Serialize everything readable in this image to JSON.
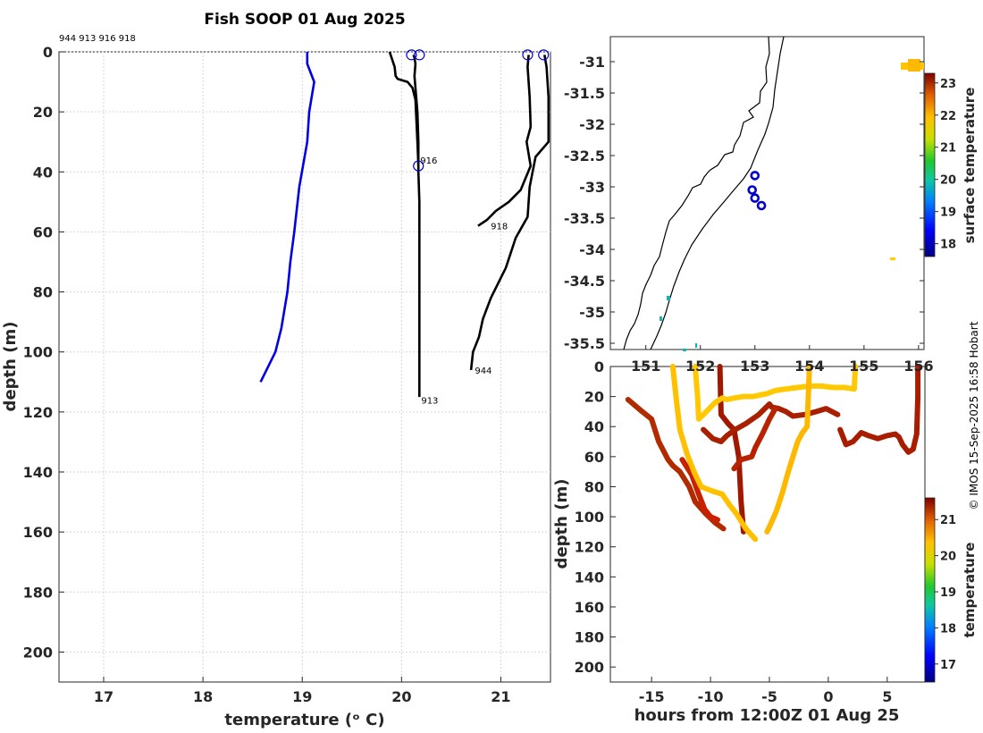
{
  "title": "Fish SOOP 01 Aug 2025",
  "header_ids": "944 913 916 918",
  "credit": "© IMOS 15-Sep-2025 16:58 Hobart",
  "colors": {
    "profile_main": "#000000",
    "profile_highlight": "#0000e6",
    "marker": "#0000d0",
    "grid": "#d6d6d6"
  },
  "chart_data": [
    {
      "type": "line",
      "name": "temperature_profiles",
      "xlabel": "temperature (ᵒ C)",
      "ylabel": "depth (m)",
      "xlim": [
        16.55,
        21.5
      ],
      "ylim": [
        210,
        0
      ],
      "xticks": [
        17,
        18,
        19,
        20,
        21
      ],
      "xtick_labels": [
        "17",
        "18",
        "19",
        "20",
        "21"
      ],
      "yticks": [
        0,
        20,
        40,
        60,
        80,
        100,
        120,
        140,
        160,
        180,
        200
      ],
      "ytick_labels": [
        "0",
        "20",
        "40",
        "60",
        "80",
        "100",
        "120",
        "140",
        "160",
        "180",
        "200"
      ],
      "grid": true,
      "series": [
        {
          "name": "highlight",
          "color": "blue",
          "points": [
            [
              19.05,
              0
            ],
            [
              19.05,
              4
            ],
            [
              19.12,
              10
            ],
            [
              19.07,
              20
            ],
            [
              19.05,
              30
            ],
            [
              18.97,
              45
            ],
            [
              18.92,
              60
            ],
            [
              18.88,
              70
            ],
            [
              18.85,
              80
            ],
            [
              18.79,
              92
            ],
            [
              18.73,
              100
            ],
            [
              18.58,
              110
            ]
          ]
        },
        {
          "name": "913",
          "points": [
            [
              20.12,
              1
            ],
            [
              20.13,
              2
            ],
            [
              20.14,
              4
            ],
            [
              20.13,
              8
            ],
            [
              20.14,
              12
            ],
            [
              20.15,
              16
            ],
            [
              20.16,
              20
            ],
            [
              20.17,
              30
            ],
            [
              20.17,
              40
            ],
            [
              20.18,
              50
            ],
            [
              20.18,
              60
            ],
            [
              20.18,
              70
            ],
            [
              20.18,
              80
            ],
            [
              20.18,
              90
            ],
            [
              20.18,
              100
            ],
            [
              20.18,
              110
            ],
            [
              20.18,
              115
            ]
          ]
        },
        {
          "name": "916",
          "points": [
            [
              19.88,
              0
            ],
            [
              19.93,
              5
            ],
            [
              19.94,
              8
            ],
            [
              19.96,
              9
            ],
            [
              20.06,
              10
            ],
            [
              20.11,
              12
            ],
            [
              20.14,
              16
            ],
            [
              20.16,
              30
            ],
            [
              20.17,
              38
            ]
          ]
        },
        {
          "name": "918",
          "points": [
            [
              21.28,
              1
            ],
            [
              21.27,
              5
            ],
            [
              21.29,
              15
            ],
            [
              21.3,
              25
            ],
            [
              21.26,
              30
            ],
            [
              21.3,
              38
            ],
            [
              21.2,
              46
            ],
            [
              21.08,
              50
            ],
            [
              20.95,
              53
            ],
            [
              20.86,
              56
            ],
            [
              20.77,
              58
            ]
          ]
        },
        {
          "name": "944",
          "points": [
            [
              21.44,
              1
            ],
            [
              21.46,
              5
            ],
            [
              21.48,
              15
            ],
            [
              21.48,
              30
            ],
            [
              21.35,
              35
            ],
            [
              21.29,
              45
            ],
            [
              21.27,
              55
            ],
            [
              21.15,
              62
            ],
            [
              21.05,
              72
            ],
            [
              20.9,
              82
            ],
            [
              20.82,
              89
            ],
            [
              20.78,
              95
            ],
            [
              20.72,
              100
            ],
            [
              20.7,
              106
            ]
          ]
        }
      ],
      "markers": [
        [
          20.1,
          1
        ],
        [
          20.18,
          1
        ],
        [
          21.27,
          1
        ],
        [
          21.43,
          1
        ],
        [
          20.17,
          38
        ]
      ],
      "annotations": [
        {
          "text": "916",
          "x": 20.17,
          "y": 36
        },
        {
          "text": "918",
          "x": 20.88,
          "y": 58
        },
        {
          "text": "944",
          "x": 20.72,
          "y": 106
        },
        {
          "text": "913",
          "x": 20.18,
          "y": 116
        }
      ]
    },
    {
      "type": "scatter",
      "name": "station_map",
      "xlim": [
        150.35,
        156.1
      ],
      "ylim": [
        -35.6,
        -30.6
      ],
      "xticks": [
        151,
        152,
        153,
        154,
        155,
        156
      ],
      "xtick_labels": [
        "151",
        "152",
        "153",
        "154",
        "155",
        "156"
      ],
      "yticks": [
        -31,
        -31.5,
        -32,
        -32.5,
        -33,
        -33.5,
        -34,
        -34.5,
        -35,
        -35.5
      ],
      "ytick_labels": [
        "-31",
        "-31.5",
        "-32",
        "-32.5",
        "-33",
        "-33.5",
        "-34",
        "-34.5",
        "-35",
        "-35.5"
      ],
      "stations": [
        [
          153.0,
          -32.82
        ],
        [
          152.95,
          -33.05
        ],
        [
          153.0,
          -33.18
        ],
        [
          153.12,
          -33.3
        ]
      ],
      "colorbar": {
        "label": "surface temperature",
        "min": 17.6,
        "max": 23.3,
        "ticks": [
          18,
          19,
          20,
          21,
          22,
          23
        ],
        "tick_labels": [
          "18",
          "19",
          "20",
          "21",
          "22",
          "23"
        ]
      }
    },
    {
      "type": "scatter",
      "name": "depth_time",
      "xlabel": "hours from 12:00Z 01 Aug 25",
      "ylabel": "depth (m)",
      "xlim": [
        -18.5,
        8.2
      ],
      "ylim": [
        210,
        0
      ],
      "xticks": [
        -15,
        -10,
        -5,
        0,
        5
      ],
      "xtick_labels": [
        "-15",
        "-10",
        "-5",
        "0",
        "5"
      ],
      "yticks": [
        0,
        20,
        40,
        60,
        80,
        100,
        120,
        140,
        160,
        180,
        200
      ],
      "ytick_labels": [
        "0",
        "20",
        "40",
        "60",
        "80",
        "100",
        "120",
        "140",
        "160",
        "180",
        "200"
      ],
      "colorbar": {
        "label": "temperature",
        "min": 16.5,
        "max": 21.6,
        "ticks": [
          17,
          18,
          19,
          20,
          21
        ],
        "tick_labels": [
          "17",
          "18",
          "19",
          "20",
          "21"
        ]
      },
      "series": [
        {
          "name": "trace_a",
          "color": "#b22a00",
          "points": [
            [
              -17.0,
              22
            ],
            [
              -15.8,
              30
            ],
            [
              -15,
              35
            ],
            [
              -14.4,
              50
            ],
            [
              -13.6,
              62
            ],
            [
              -13.2,
              66
            ],
            [
              -12.6,
              70
            ],
            [
              -11.8,
              80
            ],
            [
              -11.3,
              90
            ],
            [
              -10.4,
              98
            ],
            [
              -9.6,
              104
            ],
            [
              -8.9,
              108
            ]
          ]
        },
        {
          "name": "trace_b",
          "color": "#c82000",
          "points": [
            [
              -12.4,
              62
            ],
            [
              -11.6,
              72
            ],
            [
              -11.0,
              85
            ],
            [
              -10.5,
              95
            ],
            [
              -10,
              100
            ],
            [
              -9.4,
              102
            ]
          ]
        },
        {
          "name": "trace_c",
          "color": "#a01800",
          "points": [
            [
              -9.2,
              0
            ],
            [
              -9.1,
              32
            ],
            [
              -8.5,
              38
            ],
            [
              -8.0,
              42
            ],
            [
              -7.6,
              60
            ],
            [
              -7.4,
              90
            ],
            [
              -7.2,
              110
            ]
          ]
        },
        {
          "name": "trace_d",
          "color": "#a82000",
          "points": [
            [
              -10.6,
              42
            ],
            [
              -9.8,
              48
            ],
            [
              -9.1,
              50
            ],
            [
              -8.6,
              46
            ],
            [
              -7.9,
              42
            ],
            [
              -7.0,
              38
            ],
            [
              -5.9,
              32
            ],
            [
              -5.0,
              25
            ],
            [
              -4.8,
              27
            ],
            [
              -4.2,
              28
            ],
            [
              -3.6,
              30
            ],
            [
              -3.0,
              33
            ],
            [
              -2.0,
              32
            ],
            [
              -1.0,
              30
            ],
            [
              -0.2,
              28
            ],
            [
              0.8,
              32
            ]
          ]
        },
        {
          "name": "trace_e",
          "color": "#b82200",
          "points": [
            [
              -8.0,
              68
            ],
            [
              -7.4,
              62
            ],
            [
              -6.5,
              60
            ],
            [
              -6.2,
              54
            ],
            [
              -5.6,
              45
            ],
            [
              -5.0,
              35
            ],
            [
              -4.5,
              28
            ]
          ]
        },
        {
          "name": "trace_f",
          "color": "#a81c00",
          "points": [
            [
              1.0,
              42
            ],
            [
              1.5,
              52
            ],
            [
              2.1,
              50
            ],
            [
              2.8,
              44
            ],
            [
              3.4,
              46
            ],
            [
              4.2,
              48
            ],
            [
              5.0,
              46
            ],
            [
              5.7,
              45
            ],
            [
              6.0,
              47
            ],
            [
              6.3,
              52
            ],
            [
              6.8,
              57
            ],
            [
              7.2,
              55
            ],
            [
              7.5,
              45
            ],
            [
              7.6,
              20
            ],
            [
              7.6,
              0
            ]
          ]
        },
        {
          "name": "trace_g",
          "color": "#ffc000",
          "points": [
            [
              -13.2,
              0
            ],
            [
              -12.9,
              22
            ],
            [
              -12.6,
              42
            ],
            [
              -12.0,
              58
            ],
            [
              -11.4,
              70
            ],
            [
              -10.8,
              80
            ],
            [
              -9.8,
              83
            ],
            [
              -9.0,
              85
            ],
            [
              -8.4,
              92
            ],
            [
              -7.8,
              98
            ],
            [
              -7.0,
              108
            ],
            [
              -6.2,
              115
            ]
          ]
        },
        {
          "name": "trace_h",
          "color": "#ffc800",
          "points": [
            [
              -11.3,
              0
            ],
            [
              -11.1,
              20
            ],
            [
              -11.0,
              35
            ],
            [
              -10.6,
              32
            ],
            [
              -10.1,
              28
            ],
            [
              -9.6,
              24
            ],
            [
              -9.0,
              21
            ],
            [
              -8.6,
              22
            ],
            [
              -8.0,
              21
            ],
            [
              -7.2,
              20
            ],
            [
              -6.4,
              20
            ],
            [
              -5.8,
              19
            ],
            [
              -5.2,
              18
            ],
            [
              -4.5,
              16
            ],
            [
              -3.6,
              15
            ],
            [
              -2.6,
              14
            ],
            [
              -1.6,
              13
            ],
            [
              -0.6,
              13
            ],
            [
              0.4,
              14
            ],
            [
              1.4,
              14
            ],
            [
              2.2,
              15
            ],
            [
              2.3,
              0
            ]
          ]
        },
        {
          "name": "trace_i",
          "color": "#ffb800",
          "points": [
            [
              -5.2,
              110
            ],
            [
              -4.9,
              105
            ],
            [
              -4.4,
              96
            ],
            [
              -3.9,
              84
            ],
            [
              -3.4,
              70
            ],
            [
              -3.0,
              60
            ],
            [
              -2.6,
              50
            ],
            [
              -2.2,
              44
            ],
            [
              -1.8,
              40
            ],
            [
              -1.7,
              20
            ],
            [
              -1.6,
              0
            ]
          ]
        }
      ]
    }
  ]
}
